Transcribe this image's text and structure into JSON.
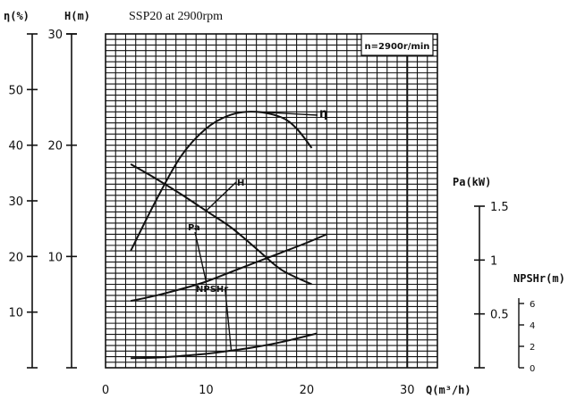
{
  "chart_data": {
    "type": "line",
    "title": "SSP20 at 2900rpm",
    "annotation": "n=2900r/min",
    "x_axis": {
      "label": "Q(m³/h)",
      "range": [
        0,
        33
      ],
      "ticks": [
        0,
        10,
        20,
        30
      ]
    },
    "y_axes": [
      {
        "id": "eta",
        "label": "η(%)",
        "range": [
          0,
          60
        ],
        "ticks": [
          10,
          20,
          30,
          40,
          50
        ],
        "grid_scale": true
      },
      {
        "id": "H",
        "label": "H(m)",
        "range": [
          0,
          30
        ],
        "ticks": [
          10,
          20,
          30
        ]
      },
      {
        "id": "Pa",
        "label": "Pa(kW)",
        "range": [
          0,
          1.5
        ],
        "ticks": [
          0.5,
          1,
          1.5
        ]
      },
      {
        "id": "NPSHr",
        "label": "NPSHr(m)",
        "range": [
          0,
          6
        ],
        "ticks": [
          0,
          2,
          4,
          6
        ]
      }
    ],
    "grid": true,
    "series": [
      {
        "name": "η",
        "axis": "eta",
        "x": [
          2.5,
          5,
          7.5,
          10,
          12.5,
          15,
          17.5,
          19,
          20.5
        ],
        "y": [
          21,
          30,
          38,
          43,
          45.5,
          46,
          45,
          43,
          39.5
        ]
      },
      {
        "name": "H",
        "axis": "H",
        "x": [
          2.5,
          5,
          7.5,
          10,
          12.5,
          15,
          17.5,
          20.5
        ],
        "y": [
          18.3,
          17,
          15.6,
          14.1,
          12.6,
          10.7,
          8.8,
          7.5
        ]
      },
      {
        "name": "Pa",
        "axis": "Pa",
        "x": [
          2.5,
          5,
          7.5,
          10,
          12.5,
          15,
          17.5,
          20,
          22
        ],
        "y": [
          0.62,
          0.67,
          0.73,
          0.8,
          0.89,
          0.98,
          1.07,
          1.16,
          1.24
        ]
      },
      {
        "name": "NPSHr",
        "axis": "NPSHr",
        "x": [
          2.5,
          5,
          7.5,
          10,
          12.5,
          15,
          17.5,
          21
        ],
        "y": [
          0.9,
          0.95,
          1.1,
          1.3,
          1.6,
          1.95,
          2.4,
          3.2
        ]
      }
    ]
  }
}
